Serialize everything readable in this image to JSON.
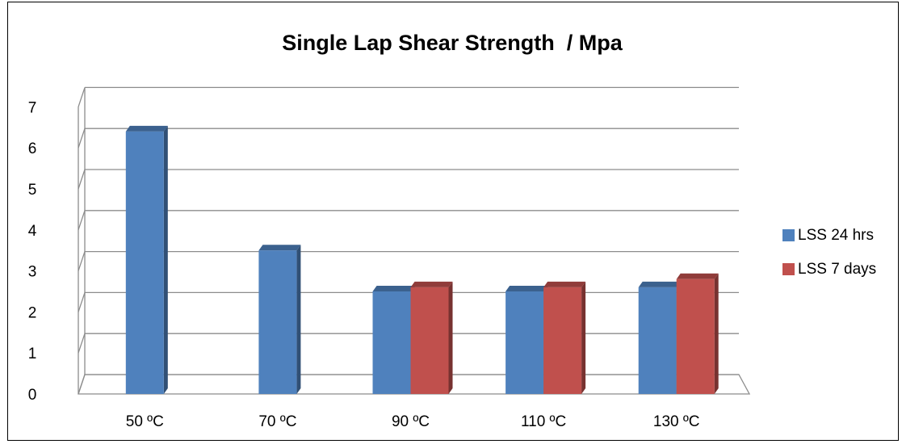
{
  "chart_data": {
    "type": "bar",
    "title": "Single Lap Shear Strength  / Mpa",
    "categories": [
      "50 ºC",
      "70 ºC",
      "90 ºC",
      "110 ºC",
      "130 ºC"
    ],
    "series": [
      {
        "name": "LSS 24 hrs",
        "color": "#4F81BD",
        "values": [
          6.4,
          3.5,
          2.5,
          2.5,
          2.6
        ]
      },
      {
        "name": "LSS 7 days",
        "color": "#C0504D",
        "values": [
          null,
          null,
          2.6,
          2.6,
          2.8
        ]
      }
    ],
    "ylim": [
      0,
      7
    ],
    "yticks": [
      "0",
      "1",
      "2",
      "3",
      "4",
      "5",
      "6",
      "7"
    ],
    "grid": true,
    "legend_position": "right",
    "style": "3d-column"
  }
}
